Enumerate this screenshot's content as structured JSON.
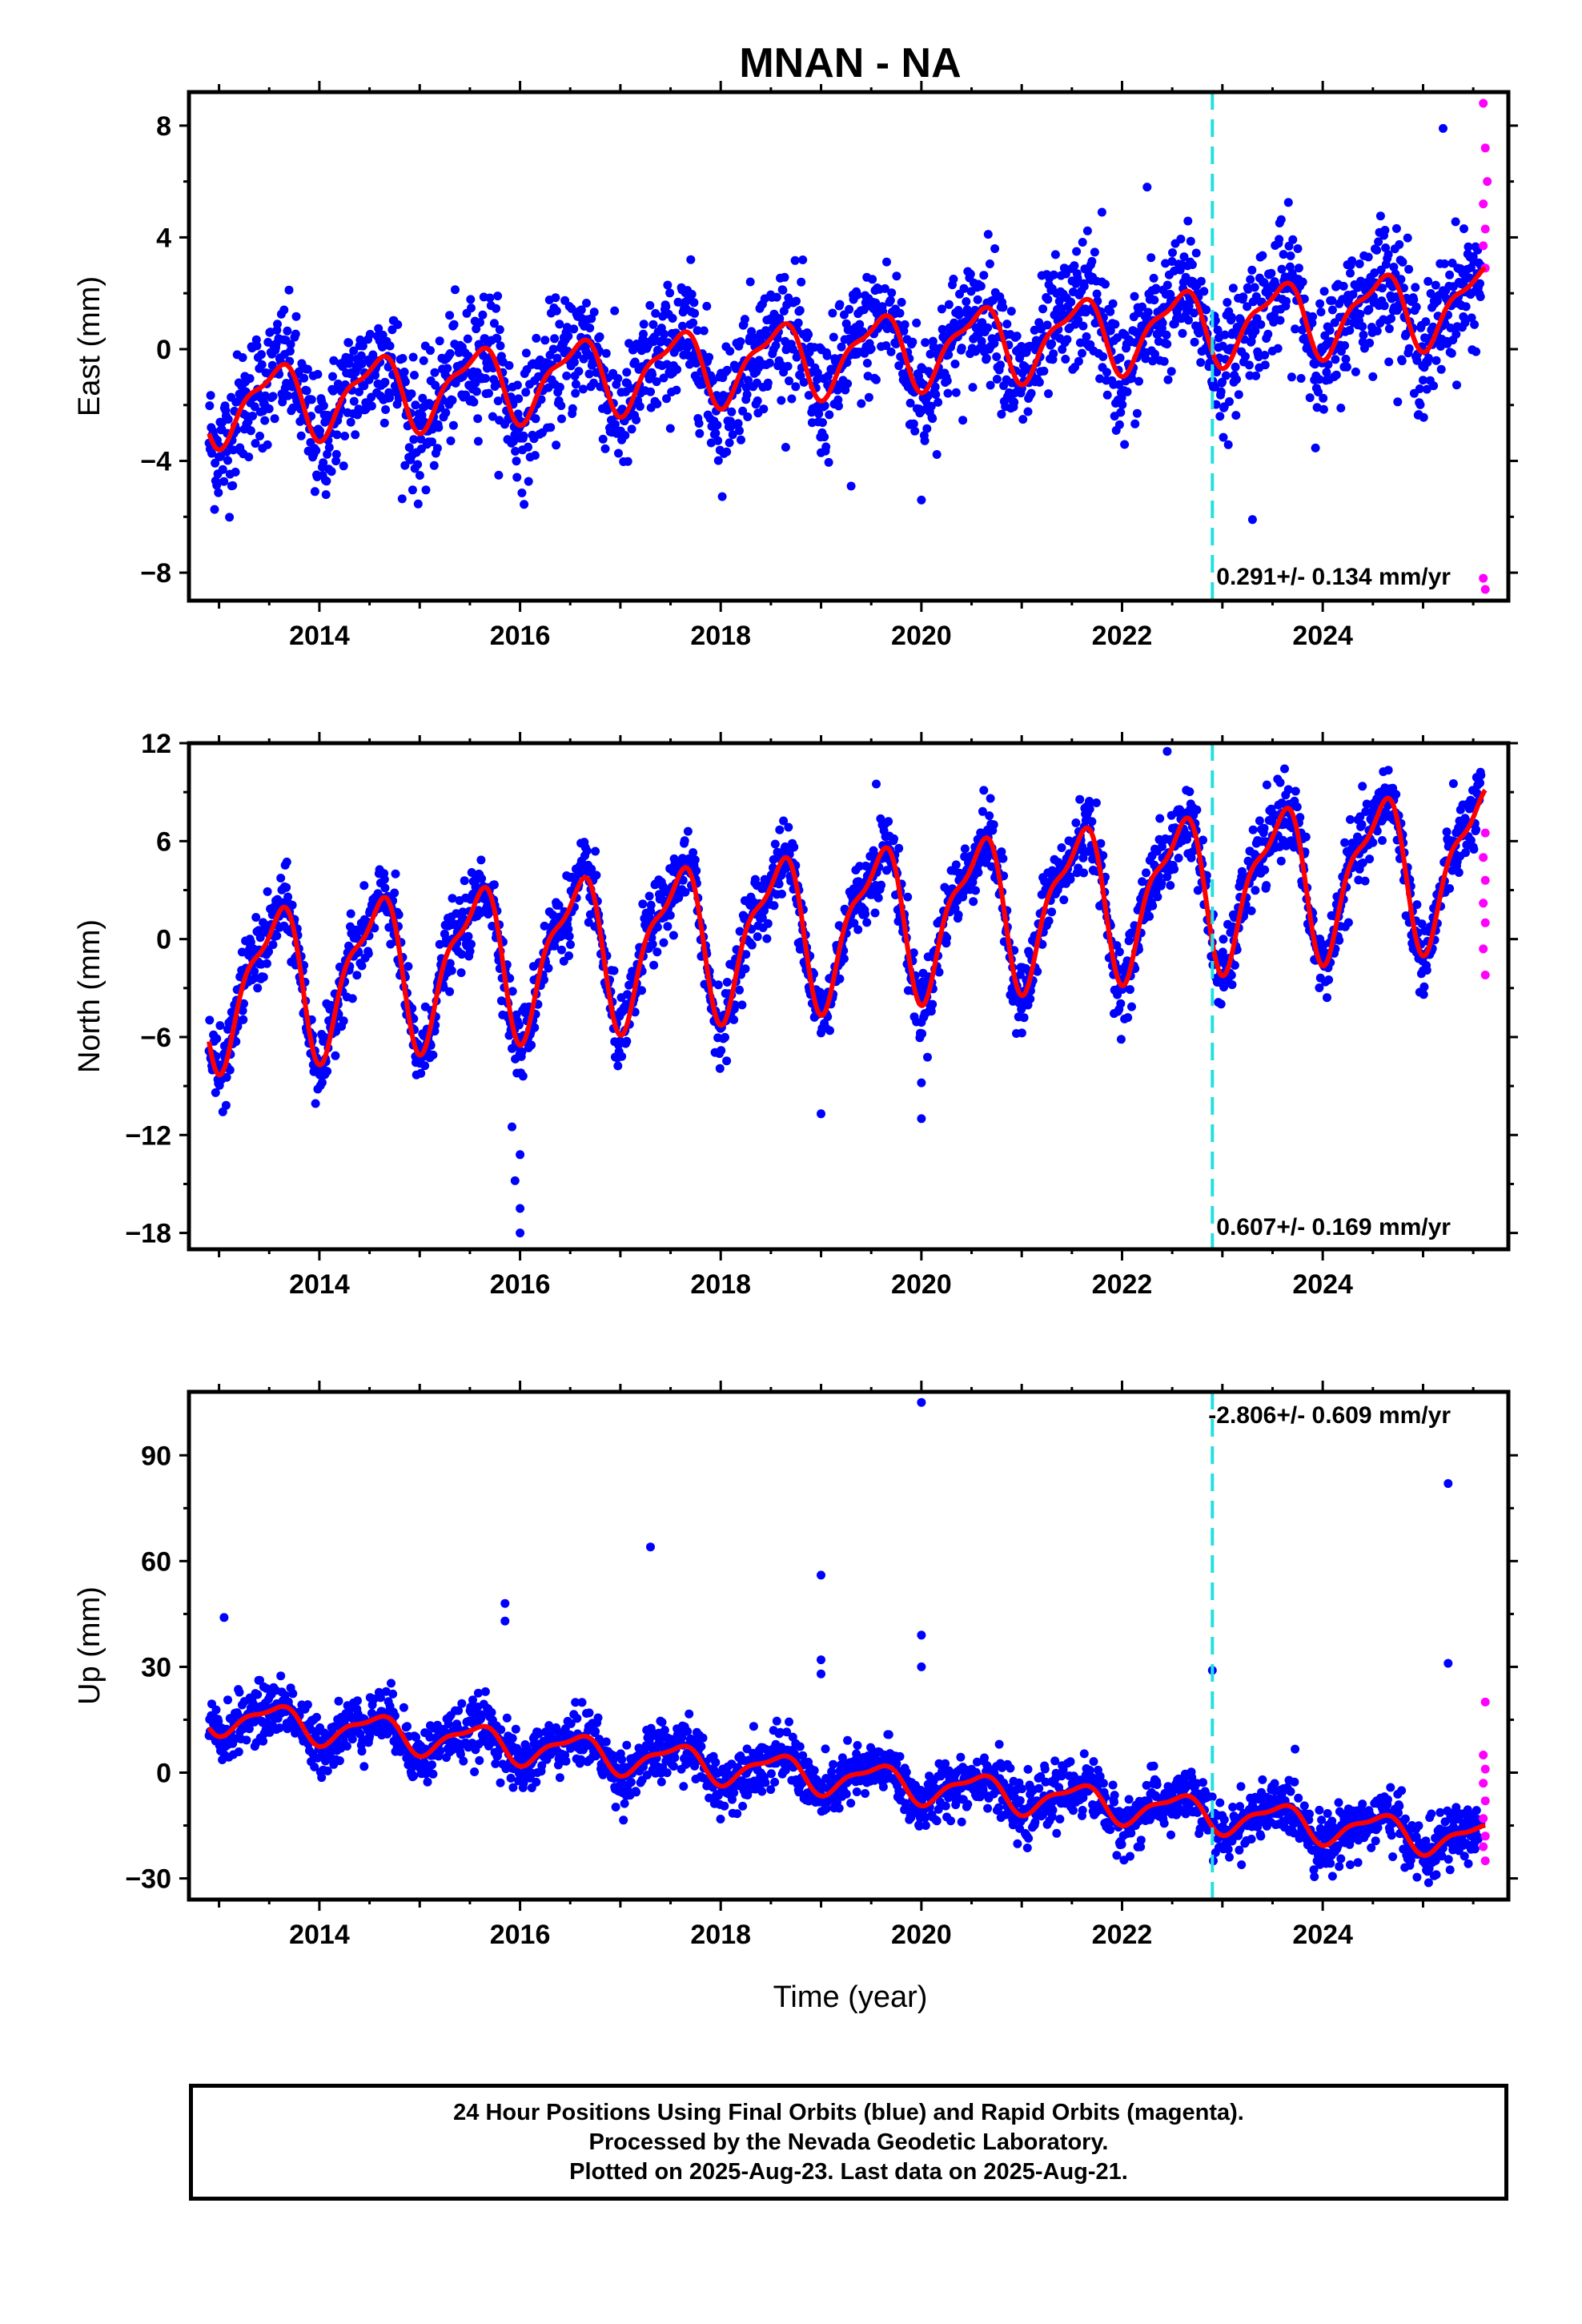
{
  "title": "MNAN - NA",
  "colors": {
    "final": "#0000ff",
    "rapid": "#ff00ff",
    "model": "#ff0000",
    "marker": "#22e0e0"
  },
  "x_tick_labels": [
    "2014",
    "2016",
    "2018",
    "2020",
    "2022",
    "2024"
  ],
  "xlabel": "Time (year)",
  "caption": [
    "24 Hour Positions Using Final Orbits (blue) and Rapid Orbits (magenta).",
    "Processed by the Nevada Geodetic Laboratory.",
    "Plotted on 2025-Aug-23. Last data on 2025-Aug-21."
  ],
  "chart_data": [
    {
      "type": "scatter",
      "ylabel": "East (mm)",
      "rate_label": "0.291+/- 0.134 mm/yr",
      "xlim": [
        2012.7,
        2025.85
      ],
      "ylim": [
        -9,
        9.2
      ],
      "yticks": [
        -8,
        -4,
        0,
        4,
        8
      ],
      "equipment_change_x": 2022.9,
      "trend_start": -2.0,
      "rate": 0.291,
      "seasonal_amp": 1.25,
      "noise": 1.1,
      "outliers": [
        [
          2019.3,
          -4.9
        ],
        [
          2020.0,
          -5.4
        ],
        [
          2023.3,
          -6.1
        ],
        [
          2022.25,
          5.8
        ],
        [
          2025.2,
          7.9
        ],
        [
          2021.8,
          4.9
        ]
      ],
      "rapid": [
        [
          2025.6,
          8.8
        ],
        [
          2025.62,
          7.2
        ],
        [
          2025.64,
          6.0
        ],
        [
          2025.6,
          5.2
        ],
        [
          2025.62,
          4.3
        ],
        [
          2025.6,
          3.7
        ],
        [
          2025.62,
          2.9
        ],
        [
          2025.6,
          -8.2
        ],
        [
          2025.62,
          -8.6
        ]
      ]
    },
    {
      "type": "scatter",
      "ylabel": "North (mm)",
      "rate_label": "0.607+/- 0.169 mm/yr",
      "xlim": [
        2012.7,
        2025.85
      ],
      "ylim": [
        -19,
        12
      ],
      "yticks": [
        -18,
        -12,
        -6,
        0,
        6,
        12
      ],
      "equipment_change_x": 2022.9,
      "trend_start": -2.8,
      "rate": 0.607,
      "seasonal_amp": 4.3,
      "noise": 1.1,
      "outliers": [
        [
          2016.0,
          -18.0
        ],
        [
          2016.0,
          -16.5
        ],
        [
          2015.95,
          -14.8
        ],
        [
          2016.0,
          -13.2
        ],
        [
          2015.92,
          -11.5
        ],
        [
          2019.0,
          -10.7
        ],
        [
          2020.0,
          -11.0
        ],
        [
          2020.0,
          -8.8
        ],
        [
          2022.45,
          11.5
        ],
        [
          2023.55,
          9.8
        ],
        [
          2019.55,
          9.5
        ]
      ],
      "rapid": [
        [
          2025.62,
          6.5
        ],
        [
          2025.6,
          5.0
        ],
        [
          2025.62,
          3.6
        ],
        [
          2025.6,
          2.2
        ],
        [
          2025.62,
          1.0
        ],
        [
          2025.6,
          -0.6
        ],
        [
          2025.62,
          -2.2
        ]
      ]
    },
    {
      "type": "scatter",
      "ylabel": "Up (mm)",
      "rate_label": "-2.806+/- 0.609 mm/yr",
      "xlim": [
        2012.7,
        2025.85
      ],
      "ylim": [
        -36,
        108
      ],
      "yticks": [
        -30,
        0,
        30,
        60,
        90
      ],
      "equipment_change_x": 2022.9,
      "trend_start": 16.0,
      "rate": -2.806,
      "seasonal_amp": 4.5,
      "noise": 4.0,
      "outliers": [
        [
          2020.0,
          105
        ],
        [
          2017.3,
          64
        ],
        [
          2019.0,
          56
        ],
        [
          2025.25,
          82
        ],
        [
          2025.25,
          31
        ],
        [
          2015.85,
          48
        ],
        [
          2015.85,
          43
        ],
        [
          2020.0,
          39
        ],
        [
          2020.0,
          30
        ],
        [
          2019.0,
          32
        ],
        [
          2019.0,
          28
        ],
        [
          2022.9,
          29
        ],
        [
          2013.05,
          44
        ]
      ],
      "rapid": [
        [
          2025.62,
          20
        ],
        [
          2025.6,
          5
        ],
        [
          2025.62,
          1
        ],
        [
          2025.6,
          -3
        ],
        [
          2025.62,
          -8
        ],
        [
          2025.6,
          -13
        ],
        [
          2025.62,
          -18
        ],
        [
          2025.6,
          -21
        ],
        [
          2025.62,
          -25
        ]
      ]
    }
  ]
}
